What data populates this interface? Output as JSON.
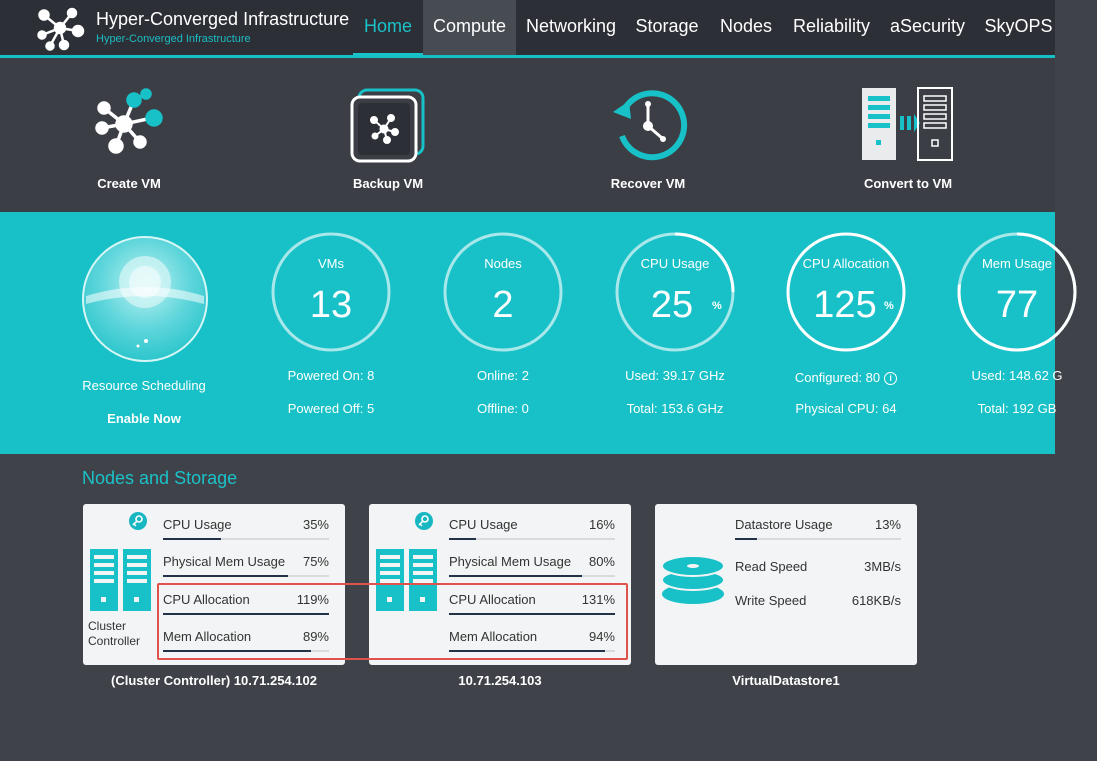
{
  "header": {
    "title": "Hyper-Converged Infrastructure",
    "subtitle": "Hyper-Converged Infrastructure",
    "nav": [
      "Home",
      "Compute",
      "Networking",
      "Storage",
      "Nodes",
      "Reliability",
      "aSecurity",
      "SkyOPS"
    ],
    "active_nav": "Home",
    "accent_color": "#1bc2c9"
  },
  "actions": [
    {
      "label": "Create VM",
      "icon": "create-vm-icon"
    },
    {
      "label": "Backup VM",
      "icon": "backup-vm-icon"
    },
    {
      "label": "Recover VM",
      "icon": "recover-vm-icon"
    },
    {
      "label": "Convert to VM",
      "icon": "convert-vm-icon"
    }
  ],
  "scheduling": {
    "line1": "Resource Scheduling",
    "line2": "Enable Now"
  },
  "stats": [
    {
      "title": "VMs",
      "value": "13",
      "unit": "",
      "line1": "Powered On: 8",
      "line2": "Powered Off: 5"
    },
    {
      "title": "Nodes",
      "value": "2",
      "unit": "",
      "line1": "Online: 2",
      "line2": "Offline: 0"
    },
    {
      "title": "CPU Usage",
      "value": "25",
      "unit": "%",
      "line1": "Used: 39.17 GHz",
      "line2": "Total: 153.6 GHz",
      "level": 0.25
    },
    {
      "title": "CPU Allocation",
      "value": "125",
      "unit": "%",
      "line1": "Configured: 80",
      "line2": "Physical CPU: 64",
      "level": 1.0
    },
    {
      "title": "Mem Usage",
      "value": "77",
      "unit": "",
      "line1": "Used: 148.62 G",
      "line2": "Total: 192 GB",
      "level": 0.77
    }
  ],
  "section_title": "Nodes and Storage",
  "nodes": [
    {
      "server_label": [
        "Cluster",
        "Controller"
      ],
      "caption": "(Cluster Controller) 10.71.254.102",
      "metrics": [
        {
          "label": "CPU Usage",
          "value": "35%",
          "level": 0.35
        },
        {
          "label": "Physical Mem Usage",
          "value": "75%",
          "level": 0.75
        },
        {
          "label": "CPU Allocation",
          "value": "119%",
          "level": 1.0
        },
        {
          "label": "Mem Allocation",
          "value": "89%",
          "level": 0.89
        }
      ]
    },
    {
      "server_label": [
        "",
        ""
      ],
      "caption": "10.71.254.103",
      "metrics": [
        {
          "label": "CPU Usage",
          "value": "16%",
          "level": 0.16
        },
        {
          "label": "Physical Mem Usage",
          "value": "80%",
          "level": 0.8
        },
        {
          "label": "CPU Allocation",
          "value": "131%",
          "level": 1.0
        },
        {
          "label": "Mem Allocation",
          "value": "94%",
          "level": 0.94
        }
      ]
    }
  ],
  "datastore": {
    "caption": "VirtualDatastore1",
    "usage_label": "Datastore Usage",
    "usage_value": "13%",
    "usage_level": 0.13,
    "read_label": "Read Speed",
    "read_value": "3MB/s",
    "write_label": "Write Speed",
    "write_value": "618KB/s"
  }
}
